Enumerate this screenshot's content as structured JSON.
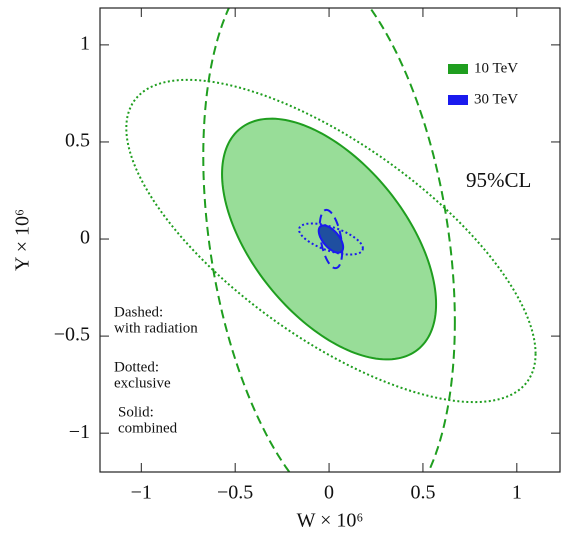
{
  "chart_data": {
    "type": "ellipse",
    "x_label": "W × 10⁶",
    "y_label": "Y × 10⁶",
    "xlim": [
      -1.22,
      1.23
    ],
    "ylim": [
      -1.2,
      1.19
    ],
    "xticks": [
      {
        "value": -1,
        "label": "−1"
      },
      {
        "value": -0.5,
        "label": "−0.5"
      },
      0,
      0.5,
      1
    ],
    "yticks": [
      {
        "value": -1,
        "label": "−1"
      },
      {
        "value": -0.5,
        "label": "−0.5"
      },
      0,
      0.5,
      1
    ],
    "legend": "upper right",
    "annotations": [
      [
        "95%CL"
      ],
      [
        "Dashed:",
        "with radiation"
      ],
      [
        "Dotted:",
        "exclusive"
      ],
      [
        "Solid:",
        "combined"
      ]
    ],
    "series": [
      {
        "name": "10 TeV",
        "color": "#1f9e1f",
        "fill": "#98dd98",
        "ellipses": [
          {
            "style": "dashed",
            "center": [
              0,
              0
            ],
            "x_halfwidth": 0.67,
            "y_halfheight": 1.47,
            "correlation": -0.29
          },
          {
            "style": "dotted",
            "center": [
              0.01,
              -0.01
            ],
            "x_halfwidth": 1.09,
            "y_halfheight": 0.83,
            "correlation": -0.7
          },
          {
            "style": "solid",
            "center": [
              0,
              0
            ],
            "x_halfwidth": 0.57,
            "y_halfheight": 0.62,
            "correlation": -0.54
          }
        ]
      },
      {
        "name": "30 TeV",
        "color": "#1a1aee",
        "fill": "#1f4fa0",
        "ellipses": [
          {
            "style": "dashed",
            "center": [
              0.01,
              0
            ],
            "x_halfwidth": 0.06,
            "y_halfheight": 0.15,
            "correlation": -0.4
          },
          {
            "style": "dotted",
            "center": [
              0.01,
              0
            ],
            "x_halfwidth": 0.17,
            "y_halfheight": 0.08,
            "correlation": -0.6
          },
          {
            "style": "solid",
            "center": [
              0.01,
              0
            ],
            "x_halfwidth": 0.065,
            "y_halfheight": 0.07,
            "correlation": -0.6
          }
        ]
      }
    ]
  }
}
